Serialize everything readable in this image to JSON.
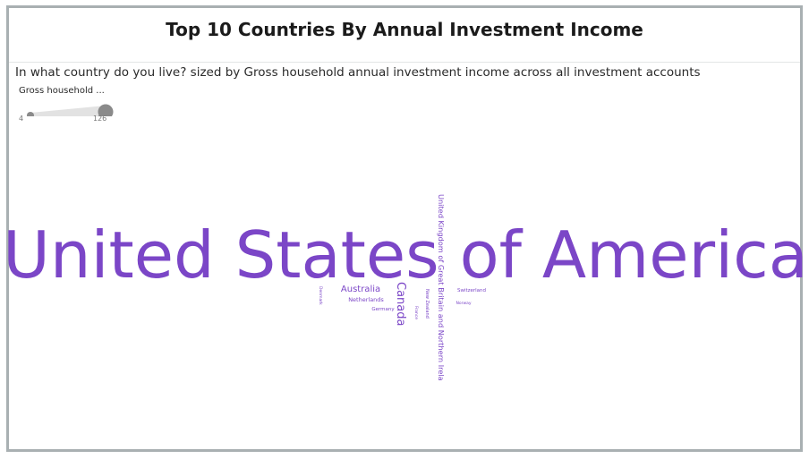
{
  "title": "Top 10 Countries By Annual Investment Income",
  "subtitle": "In what country do you live? sized by Gross household annual investment income across all investment accounts",
  "legend": {
    "title": "Gross household ...",
    "min_label": "4",
    "max_label": "126"
  },
  "colors": {
    "word": "#7b46c7",
    "border": "#a9b0b2",
    "legend": "#8a8a8a",
    "legend_band": "#e2e2e2"
  },
  "chart_data": {
    "type": "wordcloud",
    "title": "Top 10 Countries By Annual Investment Income",
    "size_measure": "Gross household annual investment income across all investment accounts",
    "size_range": [
      4,
      126
    ],
    "words": [
      {
        "text": "United States of America",
        "value": 126
      },
      {
        "text": "United Kingdom of Great Britain and Northern Irela",
        "value": 16
      },
      {
        "text": "Canada",
        "value": 14
      },
      {
        "text": "Australia",
        "value": 9
      },
      {
        "text": "Netherlands",
        "value": 6
      },
      {
        "text": "Switzerland",
        "value": 5
      },
      {
        "text": "Germany",
        "value": 5
      },
      {
        "text": "New Zealand",
        "value": 4
      },
      {
        "text": "Norway",
        "value": 4
      },
      {
        "text": "France",
        "value": 4
      },
      {
        "text": "Denmark",
        "value": 4
      }
    ]
  }
}
